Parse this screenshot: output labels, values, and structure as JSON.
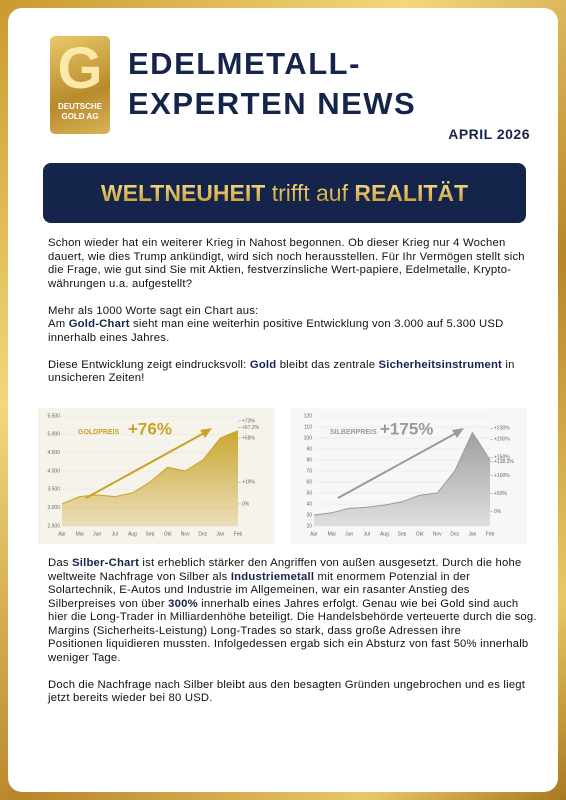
{
  "logo": {
    "letter": "G",
    "line1": "DEUTSCHE",
    "line2": "GOLD AG"
  },
  "header": {
    "title_lines": [
      "EDELMETALL-",
      "EXPERTEN NEWS"
    ],
    "date": "APRIL 2026"
  },
  "banner": {
    "part1": "WELTNEUHEIT",
    "part2": " trifft auf ",
    "part3": "REALITÄT"
  },
  "intro": [
    [
      [
        {
          "text": "Schon wieder hat ein weiterer Krieg in Nahost begonnen. Ob dieser Krieg nur 4 Wochen dauert, wie dies Trump ankündigt, wird sich noch herausstellen. Für Ihr Vermögen stellt sich die Frage, wie gut sind Sie mit Aktien, festverzinsliche Wert-papiere, Edelmetalle, Krypto-währungen u.a. aufgestellt?",
          "bold": false
        }
      ]
    ],
    [
      [
        {
          "text": "Mehr als 1000 Worte sagt ein Chart aus:",
          "bold": false
        }
      ],
      [
        {
          "text": "Am ",
          "bold": false
        },
        {
          "text": "Gold-Chart",
          "bold": true
        },
        {
          "text": " sieht man eine weiterhin positive Entwicklung von 3.000 auf 5.300 USD innerhalb eines Jahres.",
          "bold": false
        }
      ]
    ],
    [
      [
        {
          "text": "Diese Entwicklung zeigt eindrucksvoll: ",
          "bold": false
        },
        {
          "text": "Gold",
          "bold": true
        },
        {
          "text": " bleibt das zentrale ",
          "bold": false
        },
        {
          "text": "Sicherheitsinstrument",
          "bold": true
        },
        {
          "text": " in unsicheren Zeiten!",
          "bold": false
        }
      ]
    ]
  ],
  "charts": [
    {
      "type": "area",
      "name": "GOLDPREIS",
      "highlight": "+76%",
      "color": "#c9a227",
      "background": "#f6f3ea",
      "categories": [
        "Apr",
        "Mai",
        "Jun",
        "Jul",
        "Aug",
        "Sep",
        "Okt",
        "Nov",
        "Dez",
        "Jan",
        "Feb"
      ],
      "values": [
        3100,
        3300,
        3350,
        3300,
        3400,
        3700,
        4100,
        4000,
        4300,
        4900,
        5100
      ],
      "ylim": [
        2500,
        5500
      ],
      "yticks": [
        {
          "value": 2500,
          "label": "2.500"
        },
        {
          "value": 3000,
          "label": "3.000"
        },
        {
          "value": 3500,
          "label": "3.500"
        },
        {
          "value": 4000,
          "label": "4.000"
        },
        {
          "value": 4500,
          "label": "4.500"
        },
        {
          "value": 5000,
          "label": "5.000"
        },
        {
          "value": 5500,
          "label": "5.500"
        }
      ],
      "y2lim": [
        -19.4,
        77.4
      ],
      "y2ticks": [
        {
          "value": 73,
          "label": "+73%"
        },
        {
          "value": 67.2,
          "label": "+67.2%"
        },
        {
          "value": 58,
          "label": "+58%"
        },
        {
          "value": 19,
          "label": "+19%"
        },
        {
          "value": 0,
          "label": "0%"
        }
      ]
    },
    {
      "type": "area",
      "name": "SILBERPREIS",
      "highlight": "+175%",
      "color": "#9a9a9a",
      "background": "#f7f7f7",
      "categories": [
        "Apr",
        "Mai",
        "Jun",
        "Jul",
        "Aug",
        "Sep",
        "Okt",
        "Nov",
        "Dez",
        "Jan",
        "Feb"
      ],
      "values": [
        30,
        32,
        36,
        37,
        39,
        42,
        48,
        50,
        70,
        105,
        80
      ],
      "ylim": [
        20,
        120
      ],
      "yticks": [
        20,
        30,
        40,
        50,
        60,
        70,
        80,
        90,
        100,
        110,
        120
      ],
      "y2lim": [
        -39,
        264
      ],
      "y2ticks": [
        {
          "value": 230,
          "label": "+230%"
        },
        {
          "value": 200,
          "label": "+200%"
        },
        {
          "value": 150,
          "label": "+150%"
        },
        {
          "value": 138.2,
          "label": "+138.2%"
        },
        {
          "value": 100,
          "label": "+100%"
        },
        {
          "value": 50,
          "label": "+50%"
        },
        {
          "value": 0,
          "label": "0%"
        }
      ]
    }
  ],
  "outro": [
    [
      [
        {
          "text": "Das ",
          "bold": false
        },
        {
          "text": "Silber-Chart",
          "bold": true
        },
        {
          "text": " ist erheblich stärker den Angriffen von außen ausgesetzt. Durch die hohe weltweite Nachfrage von Silber als ",
          "bold": false
        },
        {
          "text": "Industriemetall",
          "bold": true
        },
        {
          "text": " mit enormem Potenzial in der Solartechnik, E-Autos und Industrie im Allgemeinen, war ein rasanter Anstieg des Silberpreises von über ",
          "bold": false
        },
        {
          "text": "300%",
          "bold": true
        },
        {
          "text": " innerhalb eines Jahres erfolgt. Genau wie bei Gold sind auch hier die Long-Trader in Milliardenhöhe beteiligt. Die Handelsbehörde verteuerte durch die sog. Margins (Sicherheits-Leistung) Long-Trades so stark, dass große Adressen ihre",
          "bold": false
        }
      ],
      [
        {
          "text": "Positionen liquidieren mussten. Infolgedessen ergab sich ein Absturz von fast 50% innerhalb weniger Tage.",
          "bold": false
        }
      ]
    ],
    [
      [
        {
          "text": "Doch die Nachfrage nach Silber bleibt aus den besagten Gründen ungebrochen und es liegt jetzt bereits wieder bei 80 USD.",
          "bold": false
        }
      ]
    ]
  ]
}
